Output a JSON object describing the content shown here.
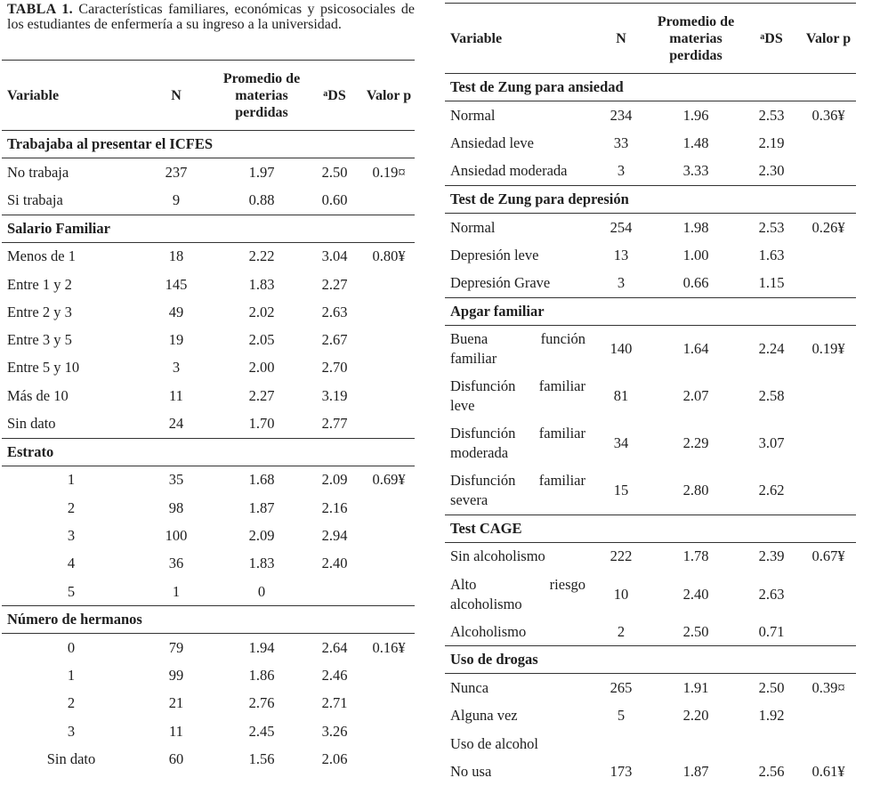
{
  "caption": {
    "label": "TABLA 1.",
    "text": "Características familiares, económicas y psicosociales de los estudiantes de enfermería a su ingreso a la universidad."
  },
  "headers": {
    "variable": "Variable",
    "n": "N",
    "avg": "Promedio de materias perdidas",
    "ds_sup": "a",
    "ds": "DS",
    "p": "Valor p"
  },
  "left_table": [
    {
      "section": "Trabajaba al presentar el ICFES",
      "rows": [
        {
          "label": "No trabaja",
          "n": "237",
          "avg": "1.97",
          "ds": "2.50",
          "p": "0.19¤"
        },
        {
          "label": "Si trabaja",
          "n": "9",
          "avg": "0.88",
          "ds": "0.60",
          "p": ""
        }
      ]
    },
    {
      "section": "Salario Familiar",
      "rows": [
        {
          "label": "Menos de 1",
          "n": "18",
          "avg": "2.22",
          "ds": "3.04",
          "p": "0.80¥"
        },
        {
          "label": "Entre 1 y 2",
          "n": "145",
          "avg": "1.83",
          "ds": "2.27",
          "p": ""
        },
        {
          "label": "Entre 2 y 3",
          "n": "49",
          "avg": "2.02",
          "ds": "2.63",
          "p": ""
        },
        {
          "label": "Entre 3 y 5",
          "n": "19",
          "avg": "2.05",
          "ds": "2.67",
          "p": ""
        },
        {
          "label": "Entre 5 y 10",
          "n": "3",
          "avg": "2.00",
          "ds": "2.70",
          "p": ""
        },
        {
          "label": "Más de 10",
          "n": "11",
          "avg": "2.27",
          "ds": "3.19",
          "p": ""
        },
        {
          "label": "Sin dato",
          "n": "24",
          "avg": "1.70",
          "ds": "2.77",
          "p": ""
        }
      ]
    },
    {
      "section": "Estrato",
      "rows": [
        {
          "label": "1",
          "indent": true,
          "n": "35",
          "avg": "1.68",
          "ds": "2.09",
          "p": "0.69¥"
        },
        {
          "label": "2",
          "indent": true,
          "n": "98",
          "avg": "1.87",
          "ds": "2.16",
          "p": ""
        },
        {
          "label": "3",
          "indent": true,
          "n": "100",
          "avg": "2.09",
          "ds": "2.94",
          "p": ""
        },
        {
          "label": "4",
          "indent": true,
          "n": "36",
          "avg": "1.83",
          "ds": "2.40",
          "p": ""
        },
        {
          "label": "5",
          "indent": true,
          "n": "1",
          "avg": "0",
          "ds": "",
          "p": ""
        }
      ]
    },
    {
      "section": "Número de hermanos",
      "rows": [
        {
          "label": "0",
          "indent": true,
          "n": "79",
          "avg": "1.94",
          "ds": "2.64",
          "p": "0.16¥"
        },
        {
          "label": "1",
          "indent": true,
          "n": "99",
          "avg": "1.86",
          "ds": "2.46",
          "p": ""
        },
        {
          "label": "2",
          "indent": true,
          "n": "21",
          "avg": "2.76",
          "ds": "2.71",
          "p": ""
        },
        {
          "label": "3",
          "indent": true,
          "n": "11",
          "avg": "2.45",
          "ds": "3.26",
          "p": ""
        },
        {
          "label": "Sin dato",
          "indent": true,
          "n": "60",
          "avg": "1.56",
          "ds": "2.06",
          "p": ""
        }
      ]
    }
  ],
  "right_table": [
    {
      "section": "Test de Zung para ansiedad",
      "rows": [
        {
          "label": "Normal",
          "n": "234",
          "avg": "1.96",
          "ds": "2.53",
          "p": "0.36¥"
        },
        {
          "label": "Ansiedad leve",
          "n": "33",
          "avg": "1.48",
          "ds": "2.19",
          "p": ""
        },
        {
          "label": "Ansiedad moderada",
          "n": "3",
          "avg": "3.33",
          "ds": "2.30",
          "p": ""
        }
      ]
    },
    {
      "section": "Test de Zung para depresión",
      "rows": [
        {
          "label": "Normal",
          "n": "254",
          "avg": "1.98",
          "ds": "2.53",
          "p": "0.26¥"
        },
        {
          "label": "Depresión leve",
          "n": "13",
          "avg": "1.00",
          "ds": "1.63",
          "p": ""
        },
        {
          "label": "Depresión Grave",
          "n": "3",
          "avg": "0.66",
          "ds": "1.15",
          "p": ""
        }
      ]
    },
    {
      "section": "Apgar familiar",
      "rows": [
        {
          "label": "Buena función familiar",
          "two": true,
          "n": "140",
          "avg": "1.64",
          "ds": "2.24",
          "p": "0.19¥"
        },
        {
          "label": "Disfunción familiar leve",
          "two": true,
          "n": "81",
          "avg": "2.07",
          "ds": "2.58",
          "p": ""
        },
        {
          "label": "Disfunción familiar moderada",
          "two": true,
          "n": "34",
          "avg": "2.29",
          "ds": "3.07",
          "p": ""
        },
        {
          "label": "Disfunción familiar severa",
          "two": true,
          "n": "15",
          "avg": "2.80",
          "ds": "2.62",
          "p": ""
        }
      ]
    },
    {
      "section": "Test CAGE",
      "rows": [
        {
          "label": "Sin alcoholismo",
          "n": "222",
          "avg": "1.78",
          "ds": "2.39",
          "p": "0.67¥"
        },
        {
          "label": "Alto riesgo alcoholismo",
          "two": true,
          "n": "10",
          "avg": "2.40",
          "ds": "2.63",
          "p": ""
        },
        {
          "label": "Alcoholismo",
          "n": "2",
          "avg": "2.50",
          "ds": "0.71",
          "p": ""
        }
      ]
    },
    {
      "section": "Uso de drogas",
      "rows": [
        {
          "label": "Nunca",
          "n": "265",
          "avg": "1.91",
          "ds": "2.50",
          "p": "0.39¤"
        },
        {
          "label": "Alguna vez",
          "n": "5",
          "avg": "2.20",
          "ds": "1.92",
          "p": ""
        },
        {
          "label": "Uso de alcohol",
          "n": "",
          "avg": "",
          "ds": "",
          "p": ""
        },
        {
          "label": "No usa",
          "n": "173",
          "avg": "1.87",
          "ds": "2.56",
          "p": "0.61¥"
        }
      ]
    }
  ]
}
